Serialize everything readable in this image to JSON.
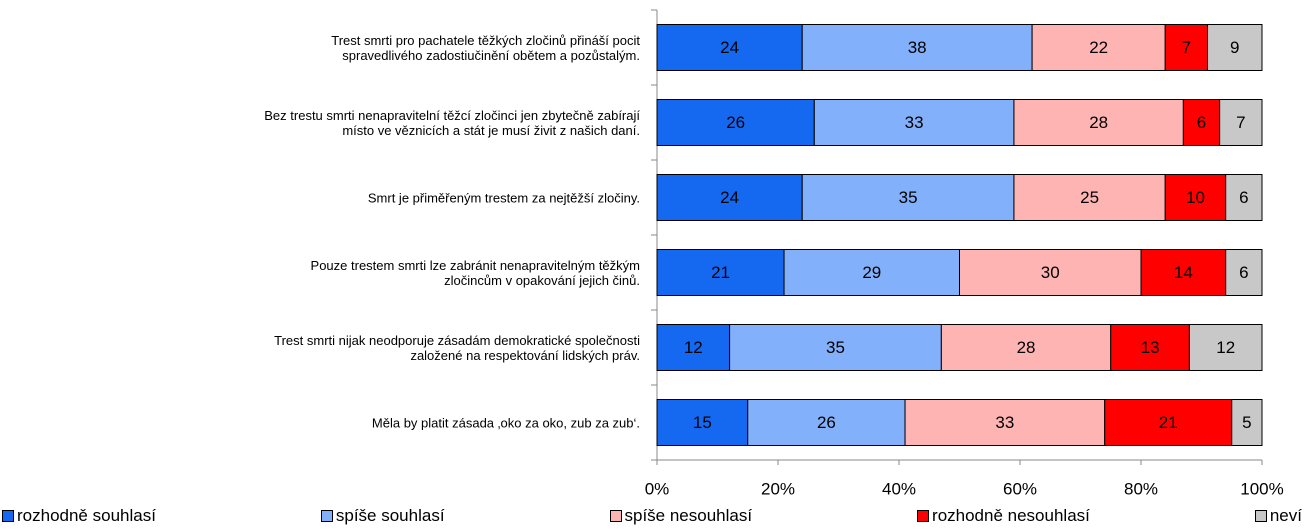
{
  "chart_data": {
    "type": "stacked_bar_horizontal",
    "categories": [
      "Trest smrti pro pachatele těžkých zločinů přináší pocit\nspravedlivého zadostiučinění obětem a pozůstalým.",
      "Bez trestu smrti nenapravitelní těžcí zločinci jen zbytečně zabírají\nmísto ve věznicích a stát je musí živit z našich daní.",
      "Smrt je přiměřeným trestem za nejtěžší zločiny.",
      "Pouze trestem smrti lze zabránit nenapravitelným těžkým\nzločincům v opakování jejich činů.",
      "Trest smrti nijak neodporuje zásadám demokratické společnosti\nzaložené na respektování lidských práv.",
      "Měla by platit zásada ‚oko za oko, zub za zub‘."
    ],
    "series": [
      {
        "name": "rozhodně souhlasí",
        "color": "#1469f0",
        "values": [
          24,
          26,
          24,
          21,
          12,
          15
        ]
      },
      {
        "name": "spíše souhlasí",
        "color": "#82b0fa",
        "values": [
          38,
          33,
          35,
          29,
          35,
          26
        ]
      },
      {
        "name": "spíše nesouhlasí",
        "color": "#ffb4b4",
        "values": [
          22,
          28,
          25,
          30,
          28,
          33
        ]
      },
      {
        "name": "rozhodně nesouhlasí",
        "color": "#ff0000",
        "values": [
          7,
          6,
          10,
          14,
          13,
          21
        ]
      },
      {
        "name": "neví",
        "color": "#c8c8c8",
        "values": [
          9,
          7,
          6,
          6,
          12,
          5
        ]
      }
    ],
    "xlim": [
      0,
      100
    ],
    "xticks": [
      {
        "value": 0,
        "label": "0%"
      },
      {
        "value": 20,
        "label": "20%"
      },
      {
        "value": 40,
        "label": "40%"
      },
      {
        "value": 60,
        "label": "60%"
      },
      {
        "value": 80,
        "label": "80%"
      },
      {
        "value": 100,
        "label": "100%"
      }
    ]
  }
}
